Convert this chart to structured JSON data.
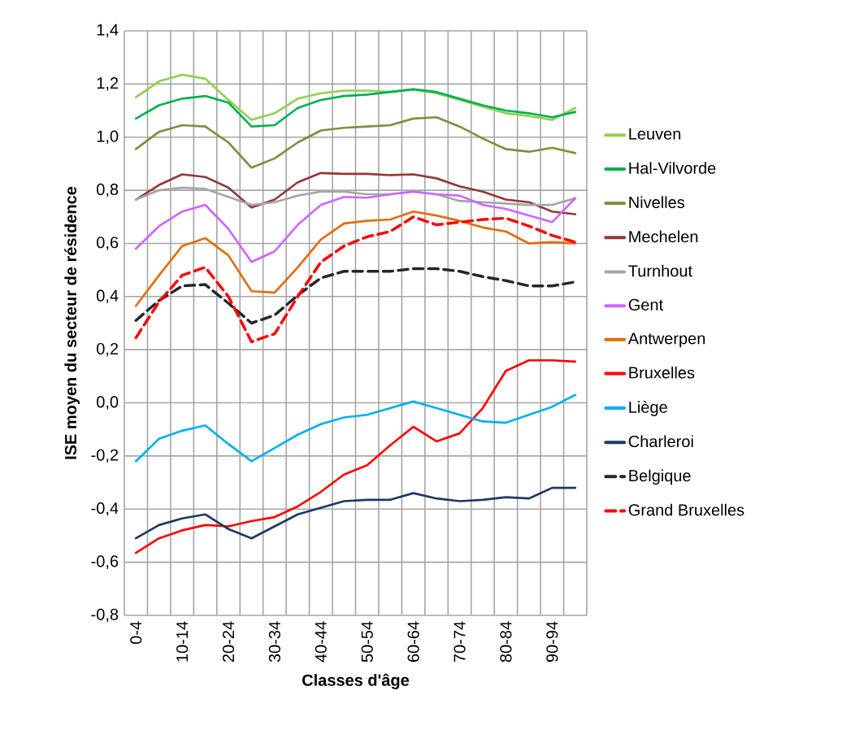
{
  "chart_data": {
    "type": "line",
    "xlabel": "Classes d'âge",
    "ylabel": "ISE moyen du secteur de résidence",
    "categories": [
      "0-4",
      null,
      "10-14",
      null,
      "20-24",
      null,
      "30-34",
      null,
      "40-44",
      null,
      "50-54",
      null,
      "60-64",
      null,
      "70-74",
      null,
      "80-84",
      null,
      "90-94",
      null
    ],
    "ylim": [
      -0.8,
      1.4
    ],
    "yticks": [
      {
        "value": -0.8,
        "label": "-0,8"
      },
      {
        "value": -0.6,
        "label": "-0,6"
      },
      {
        "value": -0.4,
        "label": "-0,4"
      },
      {
        "value": -0.2,
        "label": "-0,2"
      },
      {
        "value": 0,
        "label": "0,0"
      },
      {
        "value": 0.2,
        "label": "0,2"
      },
      {
        "value": 0.4,
        "label": "0,4"
      },
      {
        "value": 0.6,
        "label": "0,6"
      },
      {
        "value": 0.8,
        "label": "0,8"
      },
      {
        "value": 1.0,
        "label": "1,0"
      },
      {
        "value": 1.2,
        "label": "1,2"
      },
      {
        "value": 1.4,
        "label": "1,4"
      }
    ],
    "grid": true,
    "legend": "right",
    "line_style": "solid",
    "series": [
      {
        "name": "Leuven",
        "color": "#92d050",
        "values": [
          1.15,
          1.21,
          1.235,
          1.22,
          1.14,
          1.065,
          1.09,
          1.145,
          1.165,
          1.175,
          1.175,
          1.17,
          1.18,
          1.165,
          1.14,
          1.115,
          1.09,
          1.08,
          1.065,
          1.11
        ]
      },
      {
        "name": "Hal-Vilvorde",
        "color": "#00b050",
        "values": [
          1.07,
          1.12,
          1.145,
          1.155,
          1.13,
          1.04,
          1.045,
          1.11,
          1.14,
          1.155,
          1.16,
          1.17,
          1.18,
          1.17,
          1.145,
          1.12,
          1.1,
          1.09,
          1.075,
          1.095
        ]
      },
      {
        "name": "Nivelles",
        "color": "#77933c",
        "values": [
          0.955,
          1.02,
          1.045,
          1.04,
          0.98,
          0.885,
          0.92,
          0.98,
          1.025,
          1.035,
          1.04,
          1.045,
          1.07,
          1.075,
          1.04,
          0.995,
          0.955,
          0.945,
          0.96,
          0.94
        ]
      },
      {
        "name": "Mechelen",
        "color": "#953735",
        "values": [
          0.765,
          0.82,
          0.86,
          0.85,
          0.81,
          0.735,
          0.765,
          0.83,
          0.865,
          0.862,
          0.862,
          0.857,
          0.86,
          0.845,
          0.815,
          0.795,
          0.765,
          0.755,
          0.72,
          0.71
        ]
      },
      {
        "name": "Turnhout",
        "color": "#a6a6a6",
        "values": [
          0.765,
          0.8,
          0.81,
          0.805,
          0.775,
          0.745,
          0.755,
          0.78,
          0.795,
          0.795,
          0.785,
          0.785,
          0.795,
          0.785,
          0.76,
          0.755,
          0.75,
          0.745,
          0.745,
          0.77
        ]
      },
      {
        "name": "Gent",
        "color": "#cc66ff",
        "values": [
          0.58,
          0.665,
          0.72,
          0.745,
          0.655,
          0.53,
          0.57,
          0.67,
          0.745,
          0.775,
          0.772,
          0.785,
          0.795,
          0.785,
          0.78,
          0.745,
          0.73,
          0.705,
          0.68,
          0.77
        ]
      },
      {
        "name": "Antwerpen",
        "color": "#e46c0a",
        "values": [
          0.365,
          0.48,
          0.59,
          0.62,
          0.555,
          0.42,
          0.415,
          0.51,
          0.615,
          0.675,
          0.685,
          0.69,
          0.72,
          0.705,
          0.685,
          0.66,
          0.645,
          0.6,
          0.605,
          0.6
        ]
      },
      {
        "name": "Bruxelles",
        "color": "#ff0000",
        "values": [
          -0.565,
          -0.51,
          -0.48,
          -0.46,
          -0.465,
          -0.445,
          -0.43,
          -0.39,
          -0.335,
          -0.27,
          -0.235,
          -0.16,
          -0.09,
          -0.145,
          -0.115,
          -0.02,
          0.12,
          0.16,
          0.16,
          0.155
        ]
      },
      {
        "name": "Liège",
        "color": "#00b0f0",
        "values": [
          -0.22,
          -0.135,
          -0.105,
          -0.085,
          -0.155,
          -0.22,
          -0.17,
          -0.12,
          -0.08,
          -0.055,
          -0.045,
          -0.02,
          0.005,
          -0.02,
          -0.045,
          -0.07,
          -0.075,
          -0.045,
          -0.015,
          0.03
        ]
      },
      {
        "name": "Charleroi",
        "color": "#1f3864",
        "values": [
          -0.51,
          -0.46,
          -0.435,
          -0.42,
          -0.475,
          -0.51,
          -0.465,
          -0.42,
          -0.395,
          -0.37,
          -0.365,
          -0.365,
          -0.34,
          -0.36,
          -0.37,
          -0.365,
          -0.355,
          -0.36,
          -0.32,
          -0.32
        ]
      },
      {
        "name": "Belgique",
        "color": "#262626",
        "line_style": "dashed",
        "values": [
          0.31,
          0.385,
          0.44,
          0.445,
          0.375,
          0.3,
          0.33,
          0.405,
          0.47,
          0.495,
          0.495,
          0.495,
          0.505,
          0.505,
          0.495,
          0.475,
          0.46,
          0.44,
          0.44,
          0.455
        ]
      },
      {
        "name": "Grand Bruxelles",
        "color": "#ff0000",
        "line_style": "dashed",
        "values": [
          0.245,
          0.38,
          0.48,
          0.51,
          0.4,
          0.23,
          0.26,
          0.4,
          0.53,
          0.59,
          0.625,
          0.645,
          0.7,
          0.67,
          0.68,
          0.69,
          0.695,
          0.665,
          0.63,
          0.605
        ]
      }
    ]
  }
}
